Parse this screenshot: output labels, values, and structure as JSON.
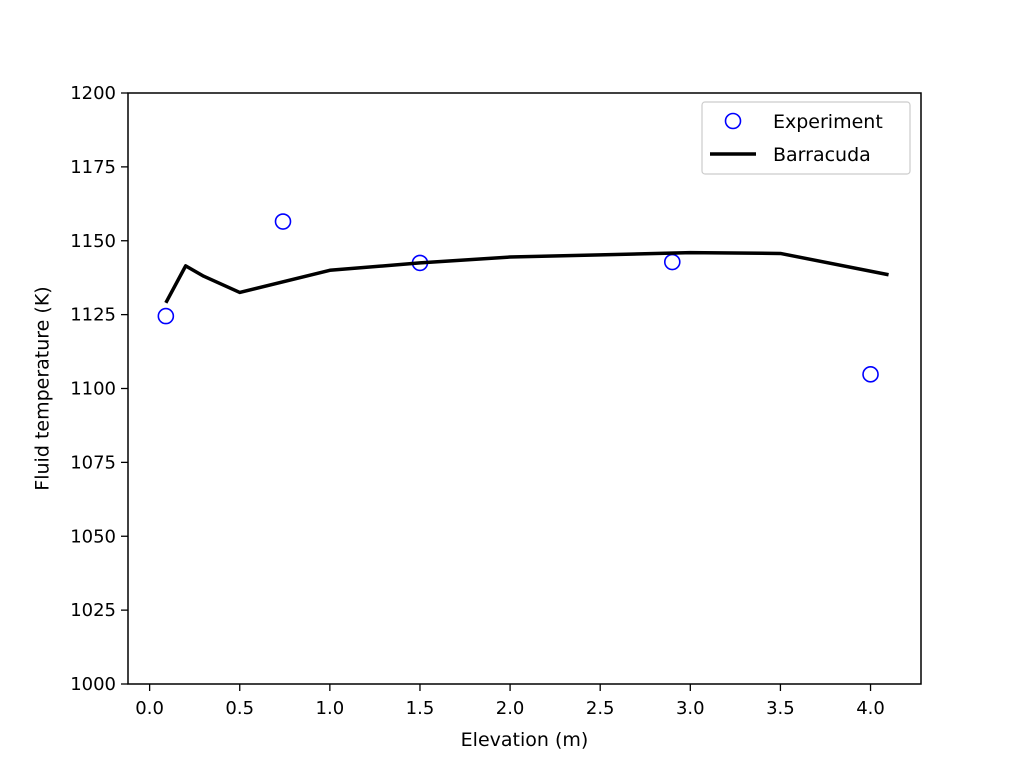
{
  "chart_data": {
    "type": "line",
    "xlabel": "Elevation (m)",
    "ylabel": "Fluid temperature (K)",
    "xlim": [
      -0.12,
      4.28
    ],
    "ylim": [
      1000,
      1200
    ],
    "xticks": [
      "0.0",
      "0.5",
      "1.0",
      "1.5",
      "2.0",
      "2.5",
      "3.0",
      "3.5",
      "4.0"
    ],
    "yticks": [
      "1000",
      "1025",
      "1050",
      "1075",
      "1100",
      "1125",
      "1150",
      "1175",
      "1200"
    ],
    "grid": false,
    "legend_position": "top-right",
    "series": [
      {
        "name": "Experiment",
        "kind": "scatter",
        "marker": "open-circle",
        "color": "#0000ff",
        "x": [
          0.09,
          0.74,
          1.5,
          2.9,
          4.0
        ],
        "y": [
          1124.5,
          1156.5,
          1142.5,
          1142.8,
          1104.8
        ]
      },
      {
        "name": "Barracuda",
        "kind": "line",
        "color": "#000000",
        "x": [
          0.09,
          0.2,
          0.3,
          0.5,
          1.0,
          1.5,
          2.0,
          2.5,
          3.0,
          3.5,
          4.1
        ],
        "y": [
          1129,
          1141.5,
          1138,
          1132.5,
          1140,
          1142.5,
          1144.5,
          1145.2,
          1146,
          1145.7,
          1138.5
        ]
      }
    ]
  }
}
